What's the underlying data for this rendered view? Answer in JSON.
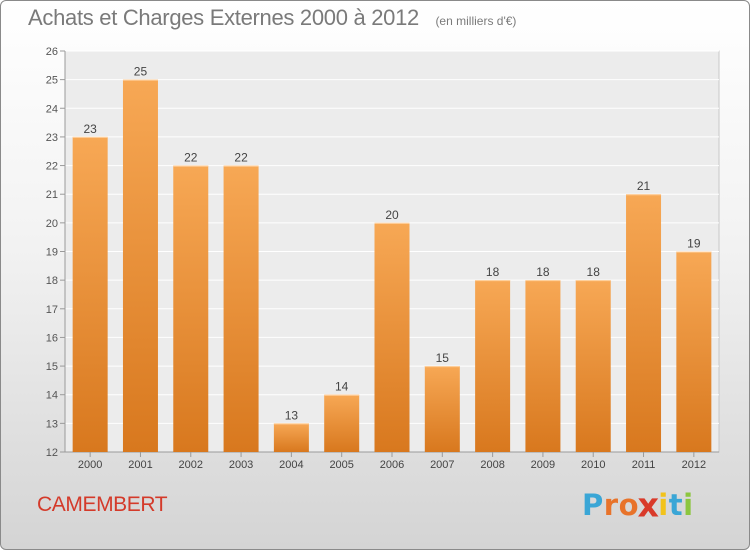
{
  "colors": {
    "bar_light": "#f7a855",
    "bar_dark": "#d8781e",
    "commune": "#d43a2a",
    "text": "#7a7a7a",
    "logo": [
      "#3aa6d6",
      "#e8732a",
      "#e8732a",
      "#d93a2a",
      "#f2c31b",
      "#3aa6d6",
      "#8cc63f"
    ]
  },
  "header": {
    "title": "Achats et Charges Externes 2000 à 2012",
    "subtitle": "(en milliers d'€)"
  },
  "commune": "CAMEMBERT",
  "logo": {
    "text": "Proxiti",
    "letters": [
      "P",
      "r",
      "o",
      "x",
      "i",
      "t",
      "i"
    ]
  },
  "chart_data": {
    "type": "bar",
    "title": "Achats et Charges Externes 2000 à 2012",
    "subtitle": "(en milliers d'€)",
    "categories": [
      "2000",
      "2001",
      "2002",
      "2003",
      "2004",
      "2005",
      "2006",
      "2007",
      "2008",
      "2009",
      "2010",
      "2011",
      "2012"
    ],
    "values": [
      23,
      25,
      22,
      22,
      13,
      14,
      20,
      15,
      18,
      18,
      18,
      21,
      19
    ],
    "data_labels": [
      "23",
      "25",
      "22",
      "22",
      "13",
      "14",
      "20",
      "15",
      "18",
      "18",
      "18",
      "21",
      "19"
    ],
    "yticks": [
      "12",
      "13",
      "14",
      "15",
      "16",
      "17",
      "18",
      "19",
      "20",
      "21",
      "22",
      "23",
      "24",
      "25",
      "26"
    ],
    "ylim": [
      12,
      26
    ],
    "grid": true,
    "xlabel": "",
    "ylabel": ""
  }
}
